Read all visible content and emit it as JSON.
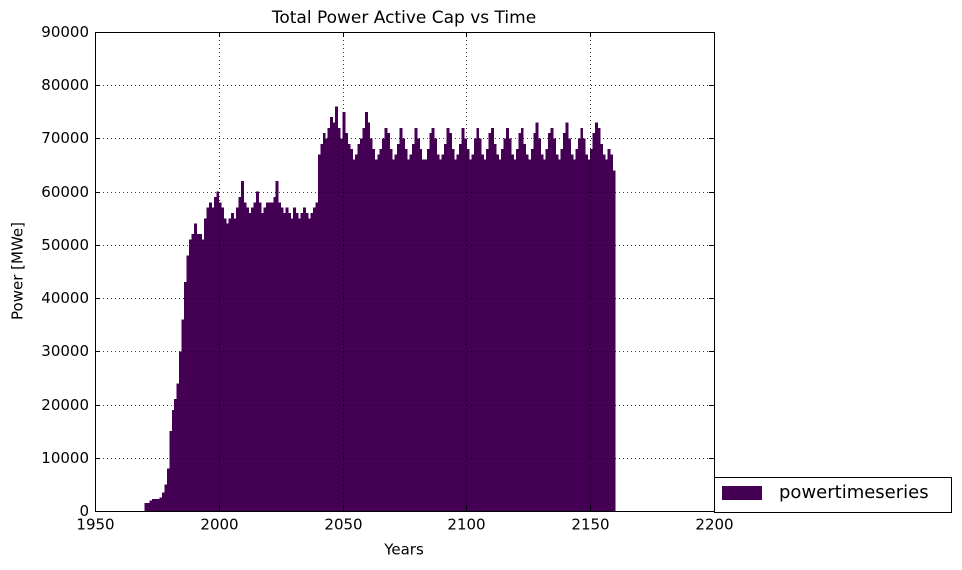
{
  "chart_data": {
    "type": "bar",
    "title": "Total Power Active Cap vs Time",
    "x_label": "Years",
    "y_label": "Power [MWe]",
    "x": [
      1970,
      1971,
      1972,
      1973,
      1974,
      1975,
      1976,
      1977,
      1978,
      1979,
      1980,
      1981,
      1982,
      1983,
      1984,
      1985,
      1986,
      1987,
      1988,
      1989,
      1990,
      1991,
      1992,
      1993,
      1994,
      1995,
      1996,
      1997,
      1998,
      1999,
      2000,
      2001,
      2002,
      2003,
      2004,
      2005,
      2006,
      2007,
      2008,
      2009,
      2010,
      2011,
      2012,
      2013,
      2014,
      2015,
      2016,
      2017,
      2018,
      2019,
      2020,
      2021,
      2022,
      2023,
      2024,
      2025,
      2026,
      2027,
      2028,
      2029,
      2030,
      2031,
      2032,
      2033,
      2034,
      2035,
      2036,
      2037,
      2038,
      2039,
      2040,
      2041,
      2042,
      2043,
      2044,
      2045,
      2046,
      2047,
      2048,
      2049,
      2050,
      2051,
      2052,
      2053,
      2054,
      2055,
      2056,
      2057,
      2058,
      2059,
      2060,
      2061,
      2062,
      2063,
      2064,
      2065,
      2066,
      2067,
      2068,
      2069,
      2070,
      2071,
      2072,
      2073,
      2074,
      2075,
      2076,
      2077,
      2078,
      2079,
      2080,
      2081,
      2082,
      2083,
      2084,
      2085,
      2086,
      2087,
      2088,
      2089,
      2090,
      2091,
      2092,
      2093,
      2094,
      2095,
      2096,
      2097,
      2098,
      2099,
      2100,
      2101,
      2102,
      2103,
      2104,
      2105,
      2106,
      2107,
      2108,
      2109,
      2110,
      2111,
      2112,
      2113,
      2114,
      2115,
      2116,
      2117,
      2118,
      2119,
      2120,
      2121,
      2122,
      2123,
      2124,
      2125,
      2126,
      2127,
      2128,
      2129,
      2130,
      2131,
      2132,
      2133,
      2134,
      2135,
      2136,
      2137,
      2138,
      2139,
      2140,
      2141,
      2142,
      2143,
      2144,
      2145,
      2146,
      2147,
      2148,
      2149,
      2150,
      2151,
      2152,
      2153,
      2154,
      2155,
      2156,
      2157,
      2158,
      2159
    ],
    "series": [
      {
        "name": "powertimeseries",
        "color": "#440154",
        "values": [
          1500,
          1500,
          2000,
          2300,
          2300,
          2300,
          2500,
          3500,
          5000,
          8000,
          15000,
          19000,
          21000,
          24000,
          30000,
          36000,
          43000,
          48000,
          51000,
          52000,
          54000,
          52000,
          52000,
          51000,
          55000,
          57000,
          58000,
          57000,
          59000,
          60000,
          58000,
          57000,
          55000,
          54000,
          55000,
          56000,
          55000,
          57000,
          59000,
          62000,
          58000,
          57000,
          56000,
          57000,
          58000,
          60000,
          58000,
          56000,
          57000,
          58000,
          58000,
          58000,
          59000,
          62000,
          58000,
          57000,
          56000,
          57000,
          56000,
          55000,
          57000,
          56000,
          55000,
          56000,
          57000,
          56000,
          55000,
          56000,
          57000,
          58000,
          67000,
          69000,
          71000,
          70000,
          72000,
          74000,
          73000,
          76000,
          72000,
          70000,
          75000,
          71000,
          69000,
          68000,
          66000,
          67000,
          69000,
          70000,
          72000,
          75000,
          73000,
          70000,
          68000,
          66000,
          67000,
          68000,
          70000,
          72000,
          71000,
          68000,
          66000,
          67000,
          69000,
          72000,
          70000,
          68000,
          66000,
          67000,
          69000,
          72000,
          70000,
          68000,
          66000,
          66000,
          68000,
          71000,
          72000,
          70000,
          67000,
          66000,
          67000,
          69000,
          72000,
          71000,
          68000,
          66000,
          67000,
          69000,
          72000,
          70000,
          68000,
          66000,
          67000,
          70000,
          72000,
          70000,
          67000,
          66000,
          68000,
          71000,
          72000,
          69000,
          67000,
          66000,
          68000,
          70000,
          72000,
          70000,
          67000,
          66000,
          68000,
          71000,
          72000,
          69000,
          67000,
          66000,
          68000,
          71000,
          73000,
          70000,
          67000,
          66000,
          68000,
          71000,
          72000,
          70000,
          67000,
          66000,
          68000,
          71000,
          73000,
          70000,
          67000,
          66000,
          68000,
          70000,
          72000,
          70000,
          67000,
          66000,
          68000,
          71000,
          73000,
          72000,
          69000,
          67000,
          66000,
          68000,
          67000,
          64000
        ]
      }
    ],
    "xlim": [
      1950,
      2200
    ],
    "xticks": [
      1950,
      2000,
      2050,
      2100,
      2150,
      2200
    ],
    "ylim": [
      0,
      90000
    ],
    "yticks": [
      0,
      10000,
      20000,
      30000,
      40000,
      50000,
      60000,
      70000,
      80000,
      90000
    ],
    "grid": true
  }
}
